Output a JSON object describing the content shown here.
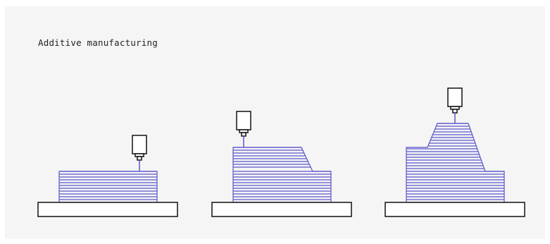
{
  "title": "Additive manufacturing",
  "colors": {
    "layer_line": "#5a56c9",
    "outline": "#111111",
    "panel_bg": "#f5f5f5",
    "base_fill": "#ffffff"
  },
  "stages": [
    {
      "label": "",
      "description_icon": "nozzle-icon"
    },
    {
      "label": "",
      "description_icon": "nozzle-icon"
    },
    {
      "label": "",
      "description_icon": "nozzle-icon"
    }
  ]
}
